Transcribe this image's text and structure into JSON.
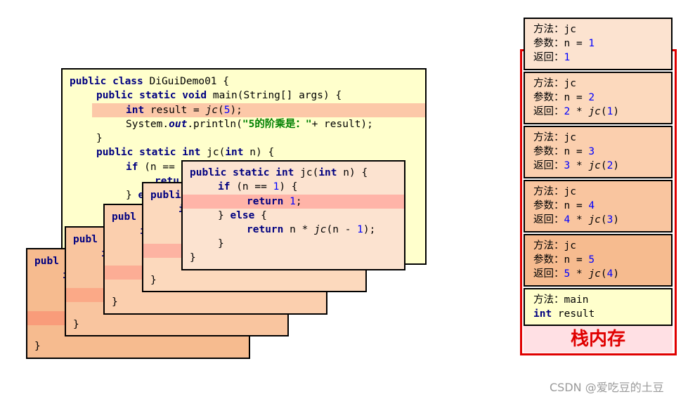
{
  "main_code": {
    "line1": {
      "kw": "public class",
      "rest": " DiGuiDemo01 {"
    },
    "line2": {
      "kw": "public static void",
      "rest": " main(String[] args) {"
    },
    "line3": {
      "kw": "int",
      "pre": " result = ",
      "fn": "jc",
      "open": "(",
      "num": "5",
      "close": ");"
    },
    "line4": {
      "pre": "System.",
      "it": "out",
      "mid": ".println(",
      "str": "\"5的阶乘是：\"",
      "post": "+ result);"
    },
    "line5": "}",
    "line6": {
      "kw": "public static int",
      "mid": " jc(",
      "kw2": "int",
      "rest": " n) {"
    },
    "line7": {
      "kw": "if",
      "rest": " (n =="
    },
    "line8": "retu",
    "line9": {
      "pre": "} ",
      "kw": "e"
    }
  },
  "frame_code": {
    "header": {
      "kw": "public static int",
      "mid": " jc(",
      "kw2": "int",
      "rest": " n) {"
    },
    "if_line": {
      "kw": "if",
      "pre": " (n == ",
      "num": "1",
      "post": ") {"
    },
    "return1": {
      "kw": "return",
      "num": " 1",
      "post": ";"
    },
    "else_line": {
      "pre": "} ",
      "kw": "else",
      "post": " {"
    },
    "return_n": {
      "kw": "return",
      "pre": " n * ",
      "fn": "jc",
      "mid": "(n - ",
      "num": "1",
      "post": ");"
    },
    "close_inner": "}",
    "close_outer": "}",
    "peek_publ": "publ",
    "peek_publi": "publi",
    "peek_brace": "}",
    "peek_i": "i",
    "peek_publ2": "publ"
  },
  "stack": {
    "method_label": "方法：",
    "param_label": "参数：",
    "return_label": "返回：",
    "frames": [
      {
        "method": "jc",
        "param": "n = ",
        "n": "1",
        "ret_plain": "1"
      },
      {
        "method": "jc",
        "param": "n = ",
        "n": "2",
        "ret_num": "2",
        "ret_op": " * ",
        "ret_fn": "jc",
        "ret_arg": "1"
      },
      {
        "method": "jc",
        "param": "n = ",
        "n": "3",
        "ret_num": "3",
        "ret_op": " * ",
        "ret_fn": "jc",
        "ret_arg": "2"
      },
      {
        "method": "jc",
        "param": "n = ",
        "n": "4",
        "ret_num": "4",
        "ret_op": " * ",
        "ret_fn": "jc",
        "ret_arg": "3"
      },
      {
        "method": "jc",
        "param": "n = ",
        "n": "5",
        "ret_num": "5",
        "ret_op": " * ",
        "ret_fn": "jc",
        "ret_arg": "4"
      }
    ],
    "main_frame": {
      "method": "main",
      "kw": "int",
      "var": " result"
    },
    "label": "栈内存"
  },
  "watermark": "CSDN @爱吃豆的土豆",
  "colors": {
    "main_bg": "#ffffcc",
    "frame_bgs": [
      "#fce3d0",
      "#fcd9bd",
      "#fbcfae",
      "#f9c59f",
      "#f6bb8f"
    ],
    "highlight_main": "#fcc8a8",
    "highlight_frame": "#ffb4a8",
    "stack_border": "#e00000"
  }
}
